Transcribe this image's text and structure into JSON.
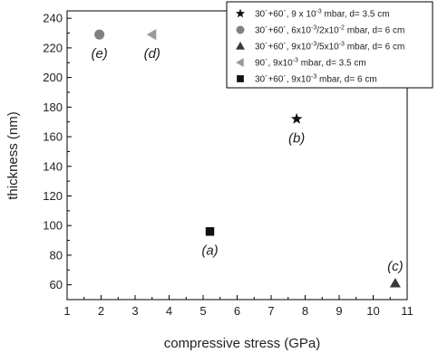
{
  "chart_data": {
    "type": "scatter",
    "xlabel": "compressive stress (GPa)",
    "ylabel": "thickness (nm)",
    "xlim": [
      1,
      11
    ],
    "ylim": [
      50,
      245
    ],
    "xticks": [
      1,
      2,
      3,
      4,
      5,
      6,
      7,
      8,
      9,
      10,
      11
    ],
    "yticks": [
      60,
      80,
      100,
      120,
      140,
      160,
      180,
      200,
      220,
      240
    ],
    "grid": false,
    "legend_position": "top-right",
    "series": [
      {
        "name": "30´+60`, 9 x 10-3 mbar, d= 3.5 cm",
        "marker": "star",
        "color": "#111111",
        "legend_parts": [
          "30´+60`, 9 x 10",
          "-3",
          " mbar, d= 3.5 cm"
        ],
        "points": [
          {
            "x": 7.75,
            "y": 172,
            "label": "(b)"
          }
        ]
      },
      {
        "name": "30´+60´, 6x10-3/2x10-2 mbar, d= 6 cm",
        "marker": "circle",
        "color": "#808080",
        "legend_parts": [
          "30´+60´, 6x10",
          "-3",
          "/2x10",
          "-2",
          " mbar, d= 6 cm"
        ],
        "points": [
          {
            "x": 1.95,
            "y": 229,
            "label": "(e)"
          }
        ]
      },
      {
        "name": "30´+60´, 9x10-3/5x10-3 mbar, d= 6 cm",
        "marker": "triangle-up",
        "color": "#3a3a3a",
        "legend_parts": [
          "30´+60´, 9x10",
          "-3",
          "/5x10",
          "-3",
          " mbar, d= 6 cm"
        ],
        "points": [
          {
            "x": 10.65,
            "y": 61,
            "label": "(c)"
          }
        ]
      },
      {
        "name": "90´, 9x10-3 mbar, d= 3.5 cm",
        "marker": "triangle-left",
        "color": "#9a9a9a",
        "legend_parts": [
          "90´, 9x10",
          "-3",
          " mbar, d= 3.5 cm"
        ],
        "points": [
          {
            "x": 3.5,
            "y": 229,
            "label": "(d)"
          }
        ]
      },
      {
        "name": "30´+60´, 9x10-3 mbar, d= 6 cm",
        "marker": "square",
        "color": "#111111",
        "legend_parts": [
          "30´+60´, 9x10",
          "-3",
          " mbar, d= 6 cm"
        ],
        "points": [
          {
            "x": 5.2,
            "y": 96,
            "label": "(a)"
          }
        ]
      }
    ]
  }
}
